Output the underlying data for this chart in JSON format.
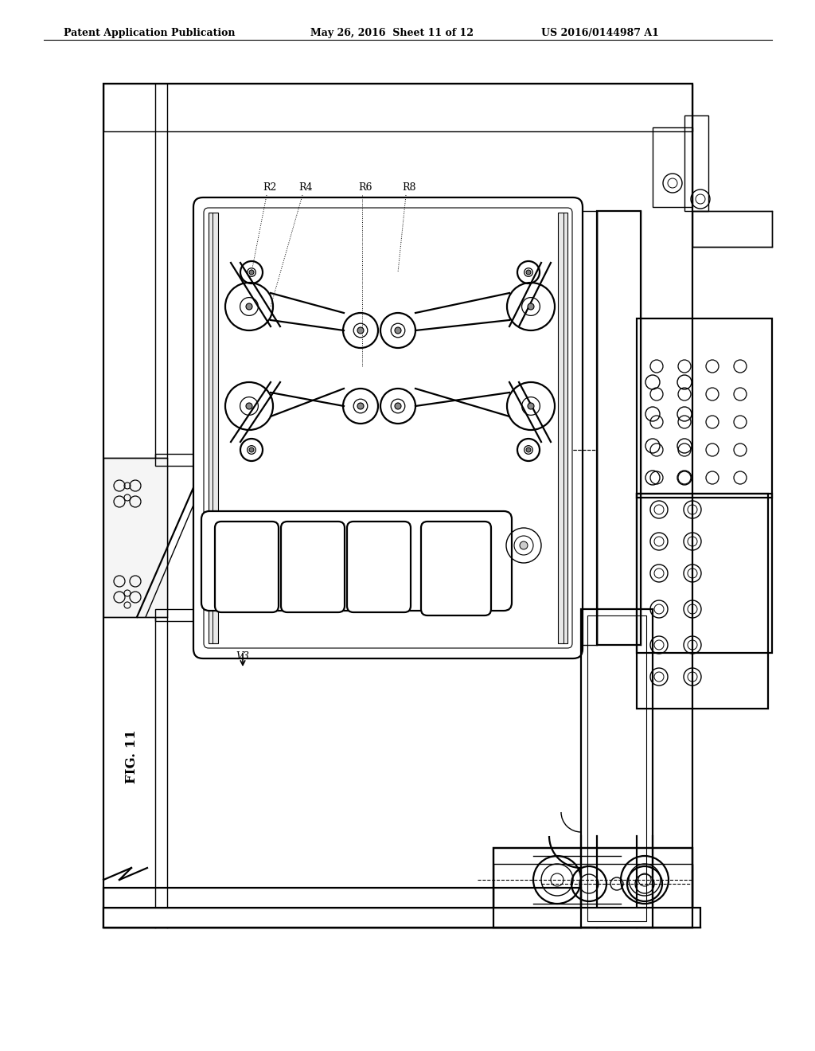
{
  "title_left": "Patent Application Publication",
  "title_mid": "May 26, 2016  Sheet 11 of 12",
  "title_right": "US 2016/0144987 A1",
  "fig_label": "FIG. 11",
  "background_color": "#ffffff",
  "line_color": "#000000",
  "v_label": "V3"
}
